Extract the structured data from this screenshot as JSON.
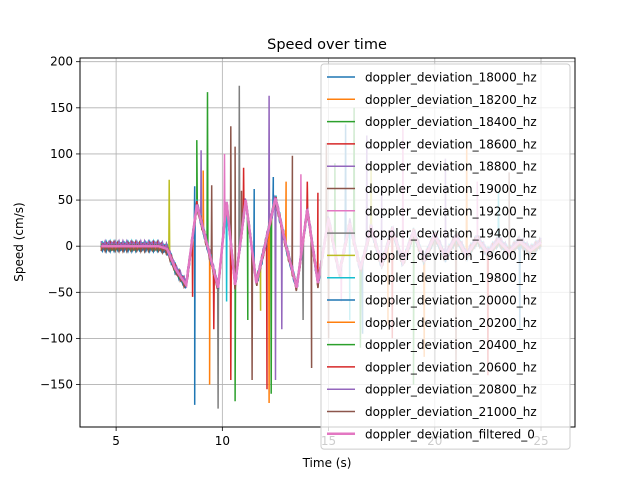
{
  "chart_data": {
    "type": "line",
    "title": "Speed over time",
    "xlabel": "Time (s)",
    "ylabel": "Speed (cm/s)",
    "xlim": [
      3.3,
      26.6
    ],
    "ylim": [
      -196,
      204
    ],
    "xticks": [
      5,
      10,
      15,
      20,
      25
    ],
    "xtick_labels": [
      "5",
      "10",
      "15",
      "20",
      "25"
    ],
    "yticks": [
      -150,
      -100,
      -50,
      0,
      50,
      100,
      150,
      200
    ],
    "ytick_labels": [
      "−150",
      "−100",
      "−50",
      "0",
      "50",
      "100",
      "150",
      "200"
    ],
    "grid": true,
    "legend_position": "top-right",
    "series": [
      {
        "name": "doppler_deviation_18000_hz",
        "color": "#1f77b4",
        "spikes": [
          [
            8.7,
            65
          ],
          [
            8.7,
            -172
          ],
          [
            12.4,
            75
          ],
          [
            16.6,
            -95
          ]
        ]
      },
      {
        "name": "doppler_deviation_18200_hz",
        "color": "#ff7f0e",
        "spikes": [
          [
            9.1,
            82
          ],
          [
            9.4,
            -150
          ],
          [
            12.2,
            -170
          ],
          [
            19.5,
            -120
          ]
        ]
      },
      {
        "name": "doppler_deviation_18400_hz",
        "color": "#2ca02c",
        "spikes": [
          [
            8.8,
            115
          ],
          [
            9.3,
            167
          ],
          [
            10.6,
            -168
          ],
          [
            12.3,
            -160
          ],
          [
            16.2,
            150
          ],
          [
            16.5,
            -110
          ]
        ]
      },
      {
        "name": "doppler_deviation_18600_hz",
        "color": "#d62728",
        "spikes": [
          [
            8.6,
            -55
          ],
          [
            10.4,
            -145
          ],
          [
            11.0,
            85
          ],
          [
            12.1,
            -155
          ],
          [
            14.5,
            58
          ],
          [
            18.0,
            -100
          ]
        ]
      },
      {
        "name": "doppler_deviation_18800_hz",
        "color": "#9467bd",
        "spikes": [
          [
            9.0,
            104
          ],
          [
            12.2,
            163
          ],
          [
            12.5,
            -145
          ],
          [
            17.5,
            60
          ]
        ]
      },
      {
        "name": "doppler_deviation_19000_hz",
        "color": "#8c564b",
        "spikes": [
          [
            9.5,
            66
          ],
          [
            10.4,
            130
          ],
          [
            10.6,
            108
          ],
          [
            11.4,
            -145
          ],
          [
            13.3,
            98
          ],
          [
            14.2,
            -132
          ],
          [
            14.9,
            112
          ],
          [
            21.0,
            -125
          ]
        ]
      },
      {
        "name": "doppler_deviation_19200_hz",
        "color": "#e377c2",
        "spikes": [
          [
            10.1,
            100
          ],
          [
            13.7,
            78
          ],
          [
            15.6,
            -60
          ],
          [
            18.5,
            130
          ],
          [
            22.0,
            70
          ]
        ]
      },
      {
        "name": "doppler_deviation_19400_hz",
        "color": "#7f7f7f",
        "spikes": [
          [
            9.8,
            -176
          ],
          [
            10.8,
            174
          ],
          [
            13.8,
            -80
          ],
          [
            20.0,
            -150
          ]
        ]
      },
      {
        "name": "doppler_deviation_19600_hz",
        "color": "#bcbd22",
        "spikes": [
          [
            7.5,
            72
          ],
          [
            11.8,
            -70
          ],
          [
            17.0,
            90
          ]
        ]
      },
      {
        "name": "doppler_deviation_19800_hz",
        "color": "#17becf",
        "spikes": [
          [
            10.2,
            -60
          ],
          [
            16.0,
            -80
          ],
          [
            23.0,
            60
          ]
        ]
      },
      {
        "name": "doppler_deviation_20000_hz",
        "color": "#1f77b4",
        "spikes": [
          [
            11.5,
            62
          ],
          [
            15.8,
            132
          ],
          [
            24.0,
            -90
          ]
        ]
      },
      {
        "name": "doppler_deviation_20200_hz",
        "color": "#ff7f0e",
        "spikes": [
          [
            13.0,
            70
          ],
          [
            17.8,
            -85
          ],
          [
            21.5,
            110
          ]
        ]
      },
      {
        "name": "doppler_deviation_20400_hz",
        "color": "#2ca02c",
        "spikes": [
          [
            11.2,
            -80
          ],
          [
            15.3,
            90
          ],
          [
            19.0,
            -150
          ]
        ]
      },
      {
        "name": "doppler_deviation_20600_hz",
        "color": "#d62728",
        "spikes": [
          [
            9.6,
            -90
          ],
          [
            14.0,
            70
          ],
          [
            22.5,
            -140
          ]
        ]
      },
      {
        "name": "doppler_deviation_20800_hz",
        "color": "#9467bd",
        "spikes": [
          [
            12.8,
            -90
          ],
          [
            16.8,
            120
          ],
          [
            20.5,
            95
          ]
        ]
      },
      {
        "name": "doppler_deviation_21000_hz",
        "color": "#8c564b",
        "spikes": [
          [
            10.9,
            60
          ],
          [
            15.0,
            -100
          ],
          [
            23.5,
            80
          ]
        ]
      },
      {
        "name": "doppler_deviation_filtered_0",
        "color": "#e377c2",
        "filtered": true
      }
    ],
    "filtered_signal": {
      "x": [
        4.3,
        7.0,
        7.4,
        7.8,
        8.3,
        8.8,
        9.3,
        9.8,
        10.2,
        10.6,
        11.1,
        11.6,
        12.0,
        12.5,
        13.0,
        13.5,
        14.0,
        14.5,
        15.0,
        15.5,
        16.0,
        16.5,
        17.0,
        17.5,
        18.0,
        18.5,
        19.0,
        19.5,
        20.0,
        20.5,
        21.0,
        21.5,
        22.0,
        22.5,
        23.0,
        23.5,
        24.0,
        24.5,
        25.0
      ],
      "y": [
        0,
        0,
        -3,
        -25,
        -42,
        45,
        0,
        -45,
        48,
        -42,
        50,
        -40,
        0,
        52,
        0,
        -45,
        40,
        -40,
        30,
        -30,
        25,
        -25,
        20,
        -20,
        18,
        -18,
        15,
        -15,
        12,
        -12,
        10,
        -10,
        8,
        -8,
        6,
        -6,
        5,
        -5,
        4
      ]
    }
  }
}
